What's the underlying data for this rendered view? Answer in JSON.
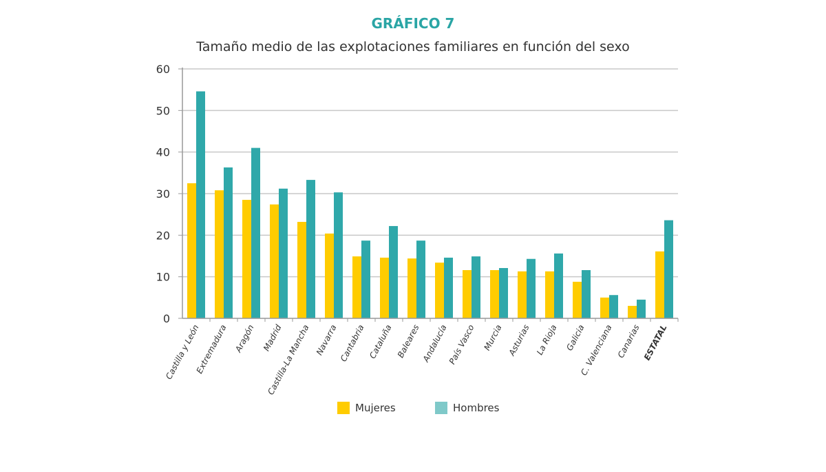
{
  "chart_data": {
    "type": "bar",
    "supertitle": "GRÁFICO 7",
    "title": "Tamaño medio de las explotaciones familiares en función del sexo",
    "categories": [
      "Castilla y León",
      "Extremadura",
      "Aragón",
      "Madrid",
      "Castilla-La Mancha",
      "Navarra",
      "Cantabria",
      "Cataluña",
      "Baleares",
      "Andalucía",
      "País Vasco",
      "Murcia",
      "Asturias",
      "La Rioja",
      "Galicia",
      "C. Valenciana",
      "Canarias",
      "ESTATAL"
    ],
    "series": [
      {
        "name": "Mujeres",
        "color": "#ffcc00",
        "values": [
          32.5,
          30.8,
          28.5,
          27.4,
          23.2,
          20.4,
          14.9,
          14.6,
          14.4,
          13.4,
          11.6,
          11.6,
          11.3,
          11.3,
          8.8,
          5.0,
          3.0,
          16.1
        ]
      },
      {
        "name": "Hombres",
        "color": "#2fa8aa",
        "values": [
          54.6,
          36.3,
          41.0,
          31.2,
          33.3,
          30.3,
          18.7,
          22.2,
          18.7,
          14.6,
          14.9,
          12.1,
          14.3,
          15.6,
          11.6,
          5.6,
          4.5,
          23.6
        ]
      }
    ],
    "yticks": [
      "0",
      "10",
      "20",
      "30",
      "40",
      "50",
      "60"
    ],
    "ylim": [
      0,
      60
    ],
    "grid": true,
    "legend": "bottom-center",
    "xlabel": "",
    "ylabel": ""
  }
}
